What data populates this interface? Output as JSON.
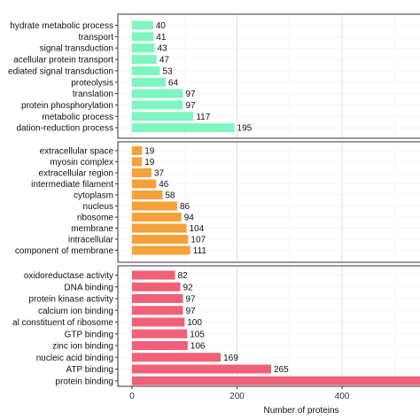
{
  "chart_data": {
    "type": "bar",
    "orientation": "horizontal",
    "xlabel": "Number of proteins",
    "xlim": [
      0,
      600
    ],
    "xticks": [
      0,
      200,
      400
    ],
    "grid": true,
    "panels": [
      {
        "color": "#7ff5c0",
        "categories": [
          "hydrate metabolic process",
          "transport",
          "signal transduction",
          "acellular protein transport",
          "ediated signal transduction",
          "proteolysis",
          "translation",
          "protein phosphorylation",
          "metabolic process",
          "dation-reduction process"
        ],
        "values": [
          40,
          41,
          43,
          47,
          53,
          64,
          97,
          97,
          117,
          195
        ]
      },
      {
        "color": "#f7a13a",
        "categories": [
          "extracellular space",
          "myosin complex",
          "extracellular region",
          "intermediate filament",
          "cytoplasm",
          "nucleus",
          "ribosome",
          "membrane",
          "intracellular",
          "component of membrane"
        ],
        "values": [
          19,
          19,
          37,
          46,
          58,
          86,
          94,
          104,
          107,
          111
        ]
      },
      {
        "color": "#f06077",
        "categories": [
          "oxidoreductase activity",
          "DNA binding",
          "protein kinase activity",
          "calcium ion binding",
          "al constituent of ribosome",
          "GTP binding",
          "zinc ion binding",
          "nucleic acid binding",
          "ATP binding",
          "protein binding"
        ],
        "values": [
          82,
          92,
          97,
          97,
          100,
          105,
          106,
          169,
          265,
          600
        ]
      }
    ]
  }
}
